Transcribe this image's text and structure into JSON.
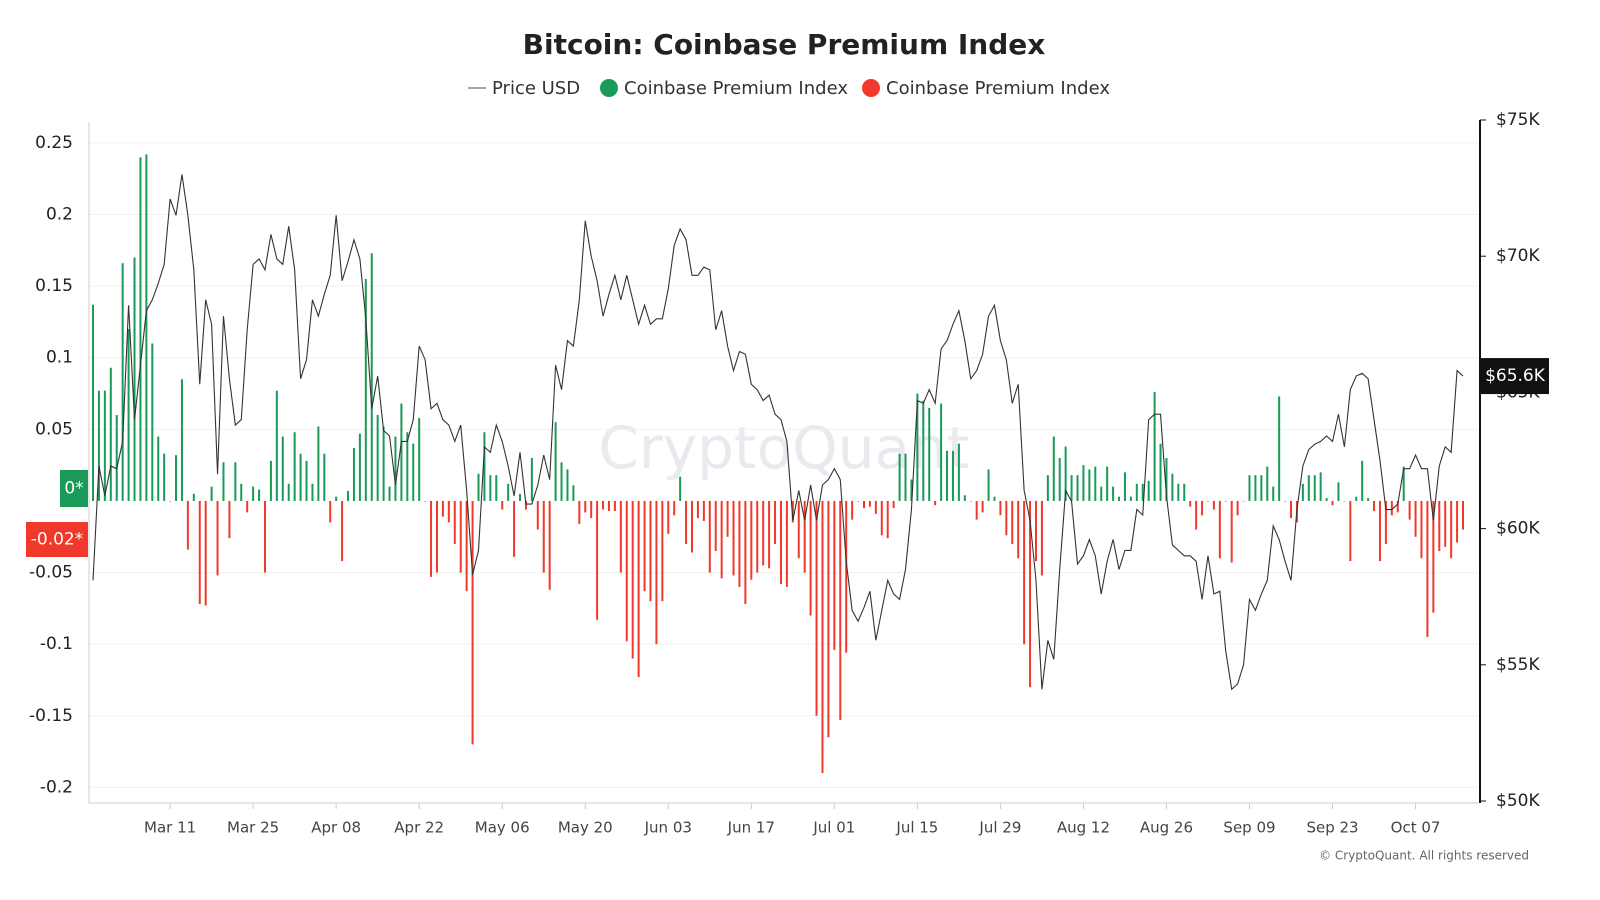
{
  "chart_data": {
    "type": "bar",
    "title": "Bitcoin: Coinbase Premium Index",
    "categories": [
      null,
      null,
      null,
      null,
      null,
      null,
      null,
      null,
      null,
      null,
      null,
      null,
      null,
      "Mar 11",
      null,
      null,
      null,
      null,
      null,
      null,
      null,
      null,
      null,
      null,
      null,
      null,
      null,
      "Mar 25",
      null,
      null,
      null,
      null,
      null,
      null,
      null,
      null,
      null,
      null,
      null,
      null,
      null,
      "Apr 08",
      null,
      null,
      null,
      null,
      null,
      null,
      null,
      null,
      null,
      null,
      null,
      null,
      null,
      "Apr 22",
      null,
      null,
      null,
      null,
      null,
      null,
      null,
      null,
      null,
      null,
      null,
      null,
      null,
      "May 06",
      null,
      null,
      null,
      null,
      null,
      null,
      null,
      null,
      null,
      null,
      null,
      null,
      null,
      "May 20",
      null,
      null,
      null,
      null,
      null,
      null,
      null,
      null,
      null,
      null,
      null,
      null,
      null,
      "Jun 03",
      null,
      null,
      null,
      null,
      null,
      null,
      null,
      null,
      null,
      null,
      null,
      null,
      null,
      "Jun 17",
      null,
      null,
      null,
      null,
      null,
      null,
      null,
      null,
      null,
      null,
      null,
      null,
      null,
      "Jul 01",
      null,
      null,
      null,
      null,
      null,
      null,
      null,
      null,
      null,
      null,
      null,
      null,
      null,
      "Jul 15",
      null,
      null,
      null,
      null,
      null,
      null,
      null,
      null,
      null,
      null,
      null,
      null,
      null,
      "Jul 29",
      null,
      null,
      null,
      null,
      null,
      null,
      null,
      null,
      null,
      null,
      null,
      null,
      null,
      "Aug 12",
      null,
      null,
      null,
      null,
      null,
      null,
      null,
      null,
      null,
      null,
      null,
      null,
      null,
      "Aug 26",
      null,
      null,
      null,
      null,
      null,
      null,
      null,
      null,
      null,
      null,
      null,
      null,
      null,
      "Sep 09",
      null,
      null,
      null,
      null,
      null,
      null,
      null,
      null,
      null,
      null,
      null,
      null,
      null,
      "Sep 23",
      null,
      null,
      null,
      null,
      null,
      null,
      null,
      null,
      null,
      null,
      null,
      null,
      null,
      "Oct 07",
      null,
      null,
      null,
      null,
      null,
      null,
      null,
      null
    ],
    "series": [
      {
        "name": "Price USD",
        "type": "line",
        "axis": "y2",
        "color": "#333333",
        "values": [
          58.1,
          62.3,
          61.2,
          62.3,
          62.2,
          63.2,
          68.2,
          64.0,
          66.0,
          68.0,
          68.4,
          69.0,
          69.7,
          72.1,
          71.5,
          73.0,
          71.5,
          69.5,
          65.3,
          68.4,
          67.5,
          62.0,
          67.8,
          65.5,
          63.8,
          64.0,
          67.3,
          69.7,
          69.9,
          69.5,
          70.8,
          69.9,
          69.7,
          71.1,
          69.5,
          65.5,
          66.2,
          68.4,
          67.8,
          68.6,
          69.3,
          71.5,
          69.1,
          69.8,
          70.6,
          69.9,
          67.7,
          64.4,
          65.6,
          63.6,
          63.4,
          61.6,
          63.2,
          63.2,
          64.0,
          66.7,
          66.2,
          64.4,
          64.6,
          64.0,
          63.8,
          63.2,
          63.8,
          61.4,
          58.3,
          59.2,
          63.0,
          62.8,
          63.8,
          63.2,
          62.3,
          61.2,
          62.8,
          60.9,
          60.9,
          61.6,
          62.7,
          61.8,
          66.0,
          65.1,
          66.9,
          66.7,
          68.4,
          71.3,
          70.0,
          69.1,
          67.8,
          68.6,
          69.3,
          68.4,
          69.3,
          68.4,
          67.5,
          68.2,
          67.5,
          67.7,
          67.7,
          68.8,
          70.4,
          71.0,
          70.6,
          69.3,
          69.3,
          69.6,
          69.5,
          67.3,
          68.0,
          66.7,
          65.8,
          66.5,
          66.4,
          65.3,
          65.1,
          64.7,
          64.9,
          64.2,
          64.0,
          63.2,
          60.3,
          61.4,
          60.3,
          61.6,
          60.3,
          61.6,
          61.8,
          62.2,
          61.8,
          58.8,
          57.0,
          56.6,
          57.1,
          57.7,
          55.9,
          57.0,
          58.1,
          57.6,
          57.4,
          58.5,
          60.7,
          64.7,
          64.6,
          65.1,
          64.6,
          66.6,
          66.9,
          67.5,
          68.0,
          66.9,
          65.5,
          65.8,
          66.4,
          67.8,
          68.2,
          66.9,
          66.2,
          64.6,
          65.3,
          61.4,
          60.3,
          58.1,
          54.1,
          55.9,
          55.2,
          58.5,
          61.4,
          61.0,
          58.7,
          59.0,
          59.6,
          59.0,
          57.6,
          58.8,
          59.6,
          58.5,
          59.2,
          59.2,
          60.7,
          60.5,
          64.0,
          64.2,
          64.2,
          61.2,
          59.4,
          59.2,
          59.0,
          59.0,
          58.8,
          57.4,
          59.0,
          57.6,
          57.7,
          55.5,
          54.1,
          54.3,
          55.0,
          57.4,
          57.0,
          57.6,
          58.1,
          60.1,
          59.6,
          58.8,
          58.1,
          60.7,
          62.3,
          62.9,
          63.1,
          63.2,
          63.4,
          63.2,
          64.2,
          63.0,
          65.1,
          65.6,
          65.7,
          65.5,
          64.0,
          62.5,
          60.7,
          60.7,
          60.9,
          62.2,
          62.2,
          62.7,
          62.2,
          62.2,
          60.3,
          62.3,
          63.0,
          62.8,
          65.8,
          65.6
        ]
      },
      {
        "name": "Coinbase Premium Index",
        "type": "bar",
        "axis": "y",
        "color": "#1a9a58",
        "values": [
          0.137,
          0.077,
          0.077,
          0.093,
          0.06,
          0.166,
          0.12,
          0.17,
          0.24,
          0.242,
          0.11,
          0.045,
          0.033,
          0,
          0.032,
          0.085,
          null,
          0.005,
          null,
          null,
          0.01,
          null,
          0.027,
          null,
          0.027,
          0.012,
          null,
          0.01,
          0.008,
          null,
          0.028,
          0.077,
          0.045,
          0.012,
          0.048,
          0.033,
          0.028,
          0.012,
          0.052,
          0.033,
          null,
          0.003,
          null,
          0.007,
          0.037,
          0.047,
          0.155,
          0.173,
          0.06,
          0.052,
          0.01,
          0.045,
          0.068,
          0.048,
          0.04,
          0.058,
          0,
          null,
          null,
          null,
          null,
          null,
          null,
          null,
          null,
          0.019,
          0.048,
          0.018,
          0.018,
          null,
          0.012,
          null,
          0.005,
          null,
          0.03,
          null,
          null,
          null,
          0.055,
          0.027,
          0.022,
          0.011,
          null,
          null,
          null,
          null,
          null,
          null,
          null,
          null,
          null,
          null,
          null,
          null,
          null,
          null,
          null,
          null,
          null,
          0.017,
          null,
          null,
          null,
          null,
          null,
          null,
          null,
          null,
          null,
          null,
          null,
          null,
          null,
          null,
          null,
          null,
          null,
          null,
          null,
          null,
          null,
          null,
          null,
          null,
          null,
          null,
          null,
          null,
          null,
          0,
          null,
          null,
          null,
          null,
          null,
          null,
          0.033,
          0.033,
          0.015,
          0.075,
          0.07,
          0.065,
          null,
          0.068,
          0.035,
          0.035,
          0.04,
          0.004,
          0,
          null,
          null,
          0.022,
          0.003,
          null,
          null,
          null,
          null,
          null,
          null,
          null,
          null,
          0.018,
          0.045,
          0.03,
          0.038,
          0.018,
          0.018,
          0.025,
          0.022,
          0.024,
          0.01,
          0.024,
          0.01,
          0.003,
          0.02,
          0.003,
          0.012,
          0.012,
          0.014,
          0.076,
          0.04,
          0.03,
          0.019,
          0.012,
          0.012,
          null,
          null,
          null,
          0,
          null,
          null,
          0,
          null,
          null,
          0,
          0.018,
          0.018,
          0.018,
          0.024,
          0.01,
          0.073,
          0,
          null,
          null,
          0.012,
          0.018,
          0.018,
          0.02,
          0.002,
          null,
          0.013,
          0,
          null,
          0.003,
          0.028,
          0.002,
          null,
          null,
          null,
          null,
          null,
          0.024,
          null,
          null,
          null,
          null,
          null,
          null,
          null,
          null,
          null,
          null
        ]
      },
      {
        "name": "Coinbase Premium Index",
        "type": "bar",
        "axis": "y",
        "color": "#f0392b",
        "values": [
          null,
          null,
          null,
          null,
          null,
          null,
          null,
          null,
          null,
          null,
          null,
          null,
          null,
          null,
          null,
          null,
          -0.034,
          null,
          -0.072,
          -0.073,
          null,
          -0.052,
          null,
          -0.026,
          null,
          null,
          -0.008,
          null,
          null,
          -0.05,
          null,
          null,
          null,
          null,
          null,
          null,
          null,
          null,
          null,
          null,
          -0.015,
          null,
          -0.042,
          null,
          null,
          null,
          null,
          null,
          null,
          null,
          null,
          null,
          null,
          null,
          null,
          null,
          null,
          -0.053,
          -0.05,
          -0.011,
          -0.015,
          -0.03,
          -0.05,
          -0.063,
          -0.17,
          null,
          null,
          null,
          null,
          -0.006,
          null,
          -0.039,
          null,
          -0.006,
          null,
          -0.02,
          -0.05,
          -0.062,
          null,
          null,
          null,
          null,
          -0.016,
          -0.008,
          -0.012,
          -0.083,
          -0.006,
          -0.007,
          -0.007,
          -0.05,
          -0.098,
          -0.11,
          -0.123,
          -0.063,
          -0.07,
          -0.1,
          -0.07,
          -0.023,
          -0.01,
          null,
          -0.03,
          -0.036,
          -0.012,
          -0.014,
          -0.05,
          -0.035,
          -0.054,
          -0.025,
          -0.052,
          -0.06,
          -0.072,
          -0.055,
          -0.05,
          -0.045,
          -0.047,
          -0.03,
          -0.058,
          -0.06,
          -0.015,
          -0.04,
          -0.05,
          -0.08,
          -0.15,
          -0.19,
          -0.165,
          -0.104,
          -0.153,
          -0.106,
          -0.013,
          null,
          -0.005,
          -0.004,
          -0.009,
          -0.024,
          -0.026,
          -0.005,
          null,
          null,
          null,
          null,
          null,
          null,
          -0.003,
          null,
          null,
          null,
          null,
          null,
          null,
          -0.013,
          -0.008,
          null,
          null,
          -0.01,
          -0.024,
          -0.03,
          -0.04,
          -0.1,
          -0.13,
          -0.042,
          -0.052,
          null,
          null,
          null,
          null,
          null,
          null,
          null,
          null,
          null,
          null,
          null,
          null,
          null,
          null,
          null,
          null,
          null,
          null,
          null,
          null,
          null,
          null,
          null,
          null,
          -0.004,
          -0.02,
          -0.01,
          null,
          -0.006,
          -0.04,
          null,
          -0.043,
          -0.01,
          null,
          null,
          null,
          null,
          null,
          null,
          null,
          null,
          -0.012,
          -0.015,
          null,
          null,
          null,
          null,
          null,
          -0.003,
          null,
          null,
          -0.042,
          null,
          null,
          null,
          -0.007,
          -0.042,
          -0.03,
          -0.01,
          -0.008,
          null,
          -0.013,
          -0.025,
          -0.04,
          -0.095,
          -0.078,
          -0.035,
          -0.032,
          -0.04,
          -0.029,
          -0.02
        ]
      }
    ],
    "ylim": [
      -0.2095,
      0.266
    ],
    "yticks": [
      0.25,
      0.2,
      0.15,
      0.1,
      0.05,
      -0.05,
      -0.1,
      -0.15,
      -0.2
    ],
    "y2lim": [
      50,
      75
    ],
    "y2ticks": [
      {
        "value": 75,
        "label": "$75K"
      },
      {
        "value": 70,
        "label": "$70K"
      },
      {
        "value": 65,
        "label": "$65K"
      },
      {
        "value": 60,
        "label": "$60K"
      },
      {
        "value": 55,
        "label": "$55K"
      },
      {
        "value": 50,
        "label": "$50K"
      }
    ],
    "value_tags": [
      {
        "value": 0,
        "label": "0*",
        "color": "#1a9a58"
      },
      {
        "value": -0.02,
        "label": "-0.02*",
        "color": "#f0392b"
      }
    ],
    "y2_tag": {
      "value": 65.6,
      "label": "$65.6K"
    },
    "grid": true,
    "watermark": "CryptoQuant",
    "footer": "© CryptoQuant. All rights reserved"
  }
}
